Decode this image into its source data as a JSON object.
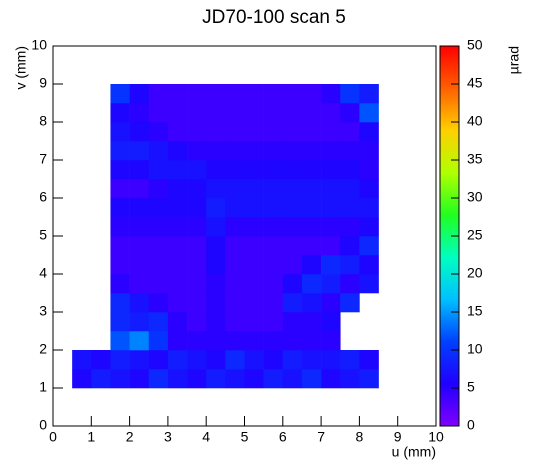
{
  "chart_data": {
    "type": "heatmap",
    "title": "JD70-100 scan 5",
    "xlabel": "u (mm)",
    "ylabel": "v (mm)",
    "zlabel": "µrad",
    "xlim": [
      0,
      10
    ],
    "ylim": [
      0,
      10
    ],
    "zlim": [
      0,
      50
    ],
    "xticks": [
      0,
      1,
      2,
      3,
      4,
      5,
      6,
      7,
      8,
      9,
      10
    ],
    "yticks": [
      0,
      1,
      2,
      3,
      4,
      5,
      6,
      7,
      8,
      9,
      10
    ],
    "zticks": [
      0,
      5,
      10,
      15,
      20,
      25,
      30,
      35,
      40,
      45,
      50
    ],
    "colormap": [
      "#8000ff",
      "#2000ff",
      "#0040ff",
      "#00c0ff",
      "#00ffc0",
      "#20ff20",
      "#b0ff00",
      "#ffd000",
      "#ff6000",
      "#ff0000"
    ],
    "xbins": [
      0.5,
      1,
      1.5,
      2,
      2.5,
      3,
      3.5,
      4,
      4.5,
      5,
      5.5,
      6,
      6.5,
      7,
      7.5,
      8,
      8.5,
      9
    ],
    "ybins": [
      1,
      1.5,
      2,
      2.5,
      3,
      3.5,
      4,
      4.5,
      5,
      5.5,
      6,
      6.5,
      7,
      7.5,
      8,
      8.5,
      9
    ],
    "values": [
      [
        6,
        8,
        7,
        6,
        9,
        7,
        6,
        8,
        7,
        6,
        8,
        7,
        9,
        6,
        7,
        8,
        null
      ],
      [
        7,
        6,
        8,
        7,
        6,
        8,
        7,
        6,
        9,
        7,
        6,
        8,
        7,
        7,
        8,
        6,
        null
      ],
      [
        null,
        null,
        12,
        14,
        10,
        5,
        5,
        5,
        5,
        5,
        5,
        5,
        5,
        5,
        null,
        null,
        null
      ],
      [
        null,
        null,
        9,
        8,
        9,
        5,
        4,
        5,
        4,
        4,
        4,
        5,
        5,
        6,
        null,
        null,
        null
      ],
      [
        null,
        null,
        9,
        7,
        5,
        4,
        4,
        5,
        4,
        4,
        4,
        8,
        7,
        5,
        9,
        null,
        null
      ],
      [
        null,
        null,
        5,
        4,
        4,
        4,
        4,
        5,
        4,
        4,
        4,
        6,
        9,
        8,
        5,
        7,
        null
      ],
      [
        null,
        null,
        4,
        4,
        4,
        4,
        4,
        6,
        4,
        4,
        4,
        4,
        6,
        9,
        8,
        6,
        null
      ],
      [
        null,
        null,
        4,
        4,
        4,
        4,
        4,
        6,
        4,
        4,
        4,
        4,
        4,
        4,
        6,
        9,
        null
      ],
      [
        null,
        null,
        5,
        5,
        5,
        5,
        5,
        7,
        5,
        5,
        5,
        5,
        5,
        5,
        5,
        6,
        null
      ],
      [
        null,
        null,
        6,
        6,
        6,
        6,
        6,
        8,
        7,
        7,
        7,
        7,
        7,
        7,
        7,
        7,
        null
      ],
      [
        null,
        null,
        4,
        4,
        5,
        6,
        6,
        7,
        7,
        7,
        7,
        7,
        7,
        7,
        7,
        6,
        null
      ],
      [
        null,
        null,
        6,
        6,
        7,
        7,
        7,
        6,
        6,
        6,
        6,
        6,
        6,
        6,
        6,
        5,
        null
      ],
      [
        null,
        null,
        8,
        8,
        7,
        6,
        5,
        5,
        5,
        5,
        5,
        5,
        5,
        5,
        5,
        5,
        null
      ],
      [
        null,
        null,
        7,
        6,
        5,
        4,
        4,
        4,
        4,
        4,
        4,
        4,
        4,
        4,
        4,
        6,
        null
      ],
      [
        null,
        null,
        6,
        5,
        4,
        4,
        4,
        4,
        4,
        4,
        4,
        4,
        4,
        4,
        5,
        12,
        null
      ],
      [
        null,
        null,
        10,
        6,
        4,
        4,
        4,
        4,
        4,
        4,
        4,
        4,
        4,
        5,
        10,
        8,
        null
      ]
    ]
  }
}
